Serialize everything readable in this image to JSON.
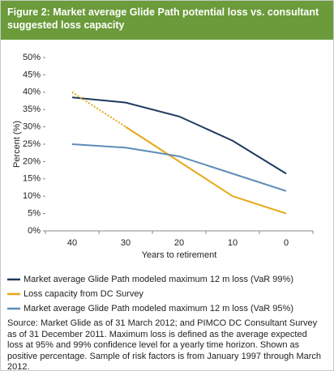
{
  "chart_data": {
    "type": "line",
    "title": "Figure 2: Market average Glide Path potential loss vs. consultant suggested loss capacity",
    "x_label": "Years to retirement",
    "y_label": "Percent (%)",
    "categories": [
      "40",
      "30",
      "20",
      "10",
      "0"
    ],
    "ylim": [
      0,
      50
    ],
    "yticks": [
      {
        "value": 0,
        "label": "0%"
      },
      {
        "value": 5,
        "label": "5%"
      },
      {
        "value": 10,
        "label": "10%"
      },
      {
        "value": 15,
        "label": "15%"
      },
      {
        "value": 20,
        "label": "20%"
      },
      {
        "value": 25,
        "label": "25%"
      },
      {
        "value": 30,
        "label": "30%"
      },
      {
        "value": 35,
        "label": "35%"
      },
      {
        "value": 40,
        "label": "40%"
      },
      {
        "value": 45,
        "label": "45%"
      },
      {
        "value": 50,
        "label": "50%"
      }
    ],
    "series": [
      {
        "name": "Market average Glide Path modeled maximum 12 m loss (VaR 99%)",
        "color": "#1f3a5f",
        "values": [
          38.5,
          37,
          33,
          26,
          16.5
        ]
      },
      {
        "name": "Loss capacity from DC Survey",
        "color": "#e6a817",
        "values": [
          40,
          30,
          20,
          10,
          5
        ],
        "dotted_segments": [
          0
        ]
      },
      {
        "name": "Market average Glide Path modeled maximum 12 m loss (VaR 95%)",
        "color": "#5b8db8",
        "values": [
          25,
          24,
          21.5,
          16.5,
          11.5
        ]
      }
    ],
    "source": "Source: Market Glide as of 31 March 2012; and PIMCO DC Consultant Survey as of 31 December 2011. Maximum loss is defined as the average expected loss at 95% and 99% confidence level for a yearly time horizon. Shown as positive percentage. Sample of risk factors is from January 1997 through March 2012."
  }
}
